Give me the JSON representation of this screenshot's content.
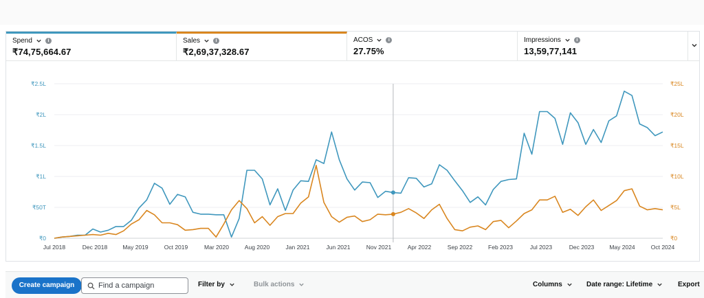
{
  "metrics": [
    {
      "label": "Spend",
      "value": "₹74,75,664.67",
      "color": "#3f97bd"
    },
    {
      "label": "Sales",
      "value": "₹2,69,37,328.67",
      "color": "#d9861f"
    },
    {
      "label": "ACOS",
      "value": "27.75%"
    },
    {
      "label": "Impressions",
      "value": "13,59,77,141"
    }
  ],
  "chart_data": {
    "type": "line",
    "x_tick_labels": [
      "Jul 2018",
      "Dec 2018",
      "May 2019",
      "Oct 2019",
      "Mar 2020",
      "Aug 2020",
      "Jan 2021",
      "Jun 2021",
      "Nov 2021",
      "Apr 2022",
      "Sep 2022",
      "Feb 2023",
      "Jul 2023",
      "Dec 2023",
      "May 2024",
      "Oct 2024"
    ],
    "left_axis": {
      "ticks": [
        "₹0",
        "₹50T",
        "₹1L",
        "₹1.5L",
        "₹2L",
        "₹2.5L"
      ],
      "ylim": [
        0,
        250000
      ],
      "color": "#3f97bd"
    },
    "right_axis": {
      "ticks": [
        "₹0",
        "₹5L",
        "₹10L",
        "₹15L",
        "₹20L",
        "₹25L"
      ],
      "ylim": [
        0,
        2500000
      ],
      "color": "#d9861f"
    },
    "hover_index": 44,
    "series": [
      {
        "name": "Spend",
        "axis": "left",
        "color": "#3f97bd",
        "values": [
          0,
          2000,
          3000,
          5000,
          5000,
          15000,
          10000,
          13000,
          19000,
          19000,
          29000,
          49000,
          62000,
          89000,
          81000,
          55000,
          71000,
          67000,
          42000,
          39000,
          39000,
          38000,
          38000,
          2000,
          32000,
          110000,
          110000,
          96000,
          54000,
          80000,
          45000,
          78000,
          93000,
          92000,
          127000,
          121000,
          172000,
          127000,
          96000,
          78000,
          91000,
          90000,
          66000,
          76000,
          74000,
          73000,
          98000,
          97000,
          83000,
          88000,
          119000,
          110000,
          93000,
          77000,
          58000,
          67000,
          54000,
          79000,
          92000,
          95000,
          96000,
          170000,
          136000,
          205000,
          205000,
          194000,
          152000,
          203000,
          187000,
          152000,
          176000,
          155000,
          190000,
          198000,
          238000,
          231000,
          185000,
          179000,
          166000,
          172000
        ]
      },
      {
        "name": "Sales",
        "axis": "right",
        "color": "#d9861f",
        "values": [
          0,
          20000,
          30000,
          40000,
          50000,
          60000,
          50000,
          80000,
          60000,
          120000,
          230000,
          300000,
          450000,
          380000,
          250000,
          250000,
          220000,
          130000,
          140000,
          160000,
          160000,
          20000,
          230000,
          460000,
          610000,
          480000,
          250000,
          350000,
          210000,
          350000,
          400000,
          400000,
          570000,
          670000,
          1180000,
          580000,
          350000,
          260000,
          340000,
          360000,
          270000,
          300000,
          390000,
          380000,
          390000,
          420000,
          480000,
          410000,
          320000,
          460000,
          550000,
          320000,
          140000,
          120000,
          180000,
          200000,
          140000,
          270000,
          290000,
          170000,
          280000,
          400000,
          460000,
          620000,
          620000,
          680000,
          420000,
          470000,
          370000,
          510000,
          620000,
          450000,
          530000,
          610000,
          770000,
          800000,
          520000,
          460000,
          480000,
          460000
        ]
      }
    ]
  },
  "toolbar": {
    "create_label": "Create campaign",
    "search_placeholder": "Find a campaign",
    "filter_label": "Filter by",
    "bulk_label": "Bulk actions",
    "columns_label": "Columns",
    "date_range_label": "Date range: Lifetime",
    "export_label": "Export"
  },
  "icons": {
    "search": "search-icon",
    "chevron": "chevron-down-icon",
    "info": "info-icon"
  }
}
